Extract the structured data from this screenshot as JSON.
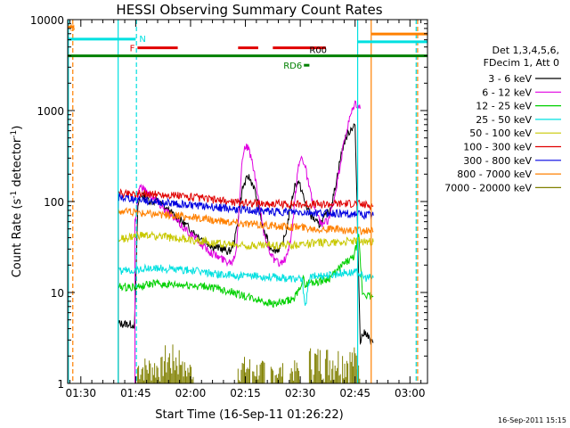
{
  "chart_data": {
    "type": "line",
    "title": "HESSI Observing Summary Count Rates",
    "xlabel": "Start Time (16-Sep-11 01:26:22)",
    "ylabel": "Count Rate (s",
    "ylabel_sup": "-1",
    "ylabel_mid": " detector",
    "ylabel_sup2": "-1",
    "ylabel_end": ")",
    "yscale": "log",
    "ylim": [
      1,
      10000
    ],
    "xlim_min": [
      86.4,
      184.8
    ],
    "x_ticks": [
      {
        "min": 90,
        "label": "01:30"
      },
      {
        "min": 105,
        "label": "01:45"
      },
      {
        "min": 120,
        "label": "02:00"
      },
      {
        "min": 135,
        "label": "02:15"
      },
      {
        "min": 150,
        "label": "02:30"
      },
      {
        "min": 165,
        "label": "02:45"
      },
      {
        "min": 180,
        "label": "03:00"
      }
    ],
    "y_ticks": [
      {
        "value": 1,
        "label": "1"
      },
      {
        "value": 10,
        "label": "10"
      },
      {
        "value": 100,
        "label": "100"
      },
      {
        "value": 1000,
        "label": "1000"
      },
      {
        "value": 10000,
        "label": "10000"
      }
    ],
    "legend": {
      "position": "right",
      "header": [
        "Det 1,3,4,5,6,",
        "FDecim 1, Att 0"
      ],
      "entries": [
        {
          "label": "3 - 6 keV",
          "color": "#000000"
        },
        {
          "label": "6 - 12 keV",
          "color": "#e000e0"
        },
        {
          "label": "12 - 25 keV",
          "color": "#00d000"
        },
        {
          "label": "25 - 50 keV",
          "color": "#00e0e0"
        },
        {
          "label": "50 - 100 keV",
          "color": "#c8c800"
        },
        {
          "label": "100 - 300 keV",
          "color": "#e00000"
        },
        {
          "label": "300 - 800 keV",
          "color": "#0000e0"
        },
        {
          "label": "800 - 7000 keV",
          "color": "#ff8000"
        },
        {
          "label": "7000 - 20000 keV",
          "color": "#808000"
        }
      ]
    },
    "series": [
      {
        "name": "3 - 6 keV",
        "color": "#000000",
        "x": [
          100.2,
          101.3,
          101.6,
          103,
          104.7,
          105.6,
          106.5,
          107.8,
          109.4,
          111.2,
          113.5,
          116,
          118.6,
          121,
          123.6,
          126,
          128.8,
          130.4,
          131.2,
          132.2,
          133.2,
          134.2,
          135.8,
          137.2,
          138.6,
          140,
          141.7,
          143.5,
          145,
          146.3,
          147.4,
          148.5,
          149.4,
          150.5,
          151.3,
          152.2,
          153,
          154,
          155,
          156,
          157,
          158,
          159,
          160,
          161,
          162,
          163,
          164,
          165,
          166.4,
          167.2,
          168.2,
          169.3,
          170
        ],
        "y": [
          4.6,
          4.5,
          4.5,
          4.5,
          4.4,
          90,
          120,
          110,
          100,
          100,
          82,
          68,
          56,
          45,
          38,
          32,
          30,
          28,
          30,
          40,
          75,
          140,
          190,
          150,
          90,
          48,
          32,
          29,
          32,
          50,
          90,
          150,
          165,
          130,
          95,
          80,
          70,
          62,
          55,
          60,
          70,
          80,
          110,
          180,
          300,
          450,
          550,
          640,
          700,
          3.0,
          3.5,
          3.6,
          2.8,
          2.8
        ]
      },
      {
        "name": "6 - 12 keV",
        "color": "#e000e0",
        "x": [
          104.8,
          106,
          108,
          110,
          112,
          114,
          116,
          118,
          120,
          122,
          124,
          126,
          128,
          130,
          131.5,
          132.5,
          133.2,
          134,
          134.8,
          135.8,
          137,
          138.5,
          140,
          141.5,
          143,
          144.5,
          146,
          147.5,
          148.5,
          149.5,
          150.5,
          151.5,
          152.5,
          153.5,
          154.5,
          156,
          157.5,
          159,
          160.5,
          162,
          163.5,
          165,
          166.4
        ],
        "y": [
          60,
          150,
          130,
          110,
          90,
          75,
          62,
          52,
          44,
          37,
          31,
          27,
          24,
          22,
          22,
          30,
          80,
          250,
          420,
          380,
          260,
          110,
          45,
          30,
          22,
          21,
          23,
          38,
          100,
          250,
          320,
          230,
          140,
          95,
          70,
          55,
          62,
          90,
          200,
          450,
          800,
          1200,
          1050
        ]
      },
      {
        "name": "12 - 25 keV",
        "color": "#00d000",
        "x": [
          100.2,
          103,
          106,
          110,
          115,
          120,
          125,
          130,
          135,
          140,
          143,
          146,
          148,
          149.5,
          150,
          150.8,
          151.5,
          152.5,
          154,
          156,
          158,
          160,
          161.5,
          163,
          164.5,
          166,
          167,
          169,
          170
        ],
        "y": [
          11.5,
          11.5,
          11.5,
          12.5,
          12,
          12,
          11.5,
          10.5,
          9,
          8,
          7.5,
          7.8,
          8.5,
          10,
          12,
          14,
          12,
          13,
          13,
          13.5,
          14.5,
          17,
          20,
          22,
          24,
          40,
          10,
          9,
          9
        ]
      },
      {
        "name": "25 - 50 keV",
        "color": "#00e0e0",
        "x": [
          100.2,
          103,
          106,
          110,
          115,
          120,
          125,
          130,
          135,
          140,
          145,
          149.5,
          150.5,
          151.5,
          152.5,
          154,
          156,
          158,
          160,
          162,
          164,
          166,
          167,
          168,
          169,
          170
        ],
        "y": [
          17,
          17.5,
          18,
          18.5,
          18,
          17.5,
          16.5,
          15.5,
          15,
          15,
          14.5,
          14,
          13.5,
          7,
          14.5,
          15,
          15.5,
          15.5,
          16,
          16.5,
          16.5,
          16.5,
          15,
          14.5,
          14.5,
          14.5
        ]
      },
      {
        "name": "50 - 100 keV",
        "color": "#c8c800",
        "x": [
          100.2,
          103,
          106,
          110,
          115,
          120,
          125,
          130,
          135,
          140,
          145,
          150,
          155,
          160,
          165,
          167,
          170
        ],
        "y": [
          38,
          40,
          42,
          42,
          40,
          38,
          36,
          34,
          33,
          33,
          33,
          34,
          35,
          36,
          37,
          36,
          36
        ]
      },
      {
        "name": "100 - 300 keV",
        "color": "#e00000",
        "x": [
          100.2,
          103,
          106,
          110,
          115,
          120,
          125,
          130,
          135,
          140,
          145,
          150,
          155,
          160,
          165,
          167,
          170
        ],
        "y": [
          122,
          123,
          122,
          120,
          117,
          112,
          106,
          100,
          97,
          95,
          94,
          93,
          93,
          94,
          95,
          92,
          90
        ]
      },
      {
        "name": "300 - 800 keV",
        "color": "#0000e0",
        "x": [
          100.2,
          103,
          106,
          110,
          115,
          120,
          125,
          130,
          135,
          140,
          145,
          150,
          155,
          160,
          165,
          167,
          170
        ],
        "y": [
          110,
          108,
          105,
          100,
          96,
          92,
          88,
          84,
          80,
          78,
          77,
          76,
          75,
          74,
          73,
          71,
          70
        ]
      },
      {
        "name": "800 - 7000 keV",
        "color": "#ff8000",
        "x": [
          100.2,
          103,
          106,
          110,
          115,
          120,
          125,
          130,
          135,
          140,
          145,
          150,
          155,
          160,
          165,
          167,
          170
        ],
        "y": [
          78,
          77,
          75,
          73,
          70,
          67,
          63,
          60,
          57,
          55,
          53,
          52,
          50,
          49,
          48,
          47,
          47
        ]
      },
      {
        "name": "7000 - 20000 keV",
        "color": "#808000",
        "style": "bars",
        "ranges": [
          [
            105.5,
            112.5
          ],
          [
            112.5,
            117.5
          ],
          [
            117.5,
            120.8
          ],
          [
            133,
            136.5
          ],
          [
            137,
            140.5
          ],
          [
            142,
            145.5
          ],
          [
            147,
            150
          ],
          [
            152.5,
            166.3
          ]
        ],
        "peaks": [
          2.0,
          2.7,
          1.8,
          2.0,
          1.8,
          1.7,
          1.8,
          2.6
        ]
      }
    ],
    "flags": [
      {
        "label": "S",
        "color": "#ff8000",
        "x": [
          86.4,
          88.2
        ],
        "y": 8300
      },
      {
        "label": "N",
        "color": "#00e0e0",
        "x": [
          86.4,
          105
        ],
        "y": 6100
      },
      {
        "label": "F",
        "color": "#e00000",
        "x": [
          105.5,
          116.5
        ],
        "y": 4900
      },
      {
        "label": "",
        "color": "#e00000",
        "x": [
          133,
          138.5
        ],
        "y": 4900
      },
      {
        "label": "",
        "color": "#e00000",
        "x": [
          142.5,
          157
        ],
        "y": 4900
      },
      {
        "label": "",
        "color": "#008000",
        "x": [
          86.4,
          184.8
        ],
        "y": 4000
      },
      {
        "label": "RD6",
        "color": "#008000",
        "x": [
          151,
          152.5
        ],
        "y": 3150
      },
      {
        "label": "R00",
        "color": "#000000",
        "x": [],
        "y": 4200
      },
      {
        "label": "",
        "color": "#00e0e0",
        "x": [
          165.8,
          184.8
        ],
        "y": 5700
      },
      {
        "label": "",
        "color": "#ff8000",
        "x": [
          169.5,
          184.8
        ],
        "y": 6950
      }
    ],
    "markers": [
      {
        "type": "solid",
        "color": "#00e0e0",
        "x": 86.6
      },
      {
        "type": "dashed",
        "color": "#ff8000",
        "x": 87.8
      },
      {
        "type": "solid",
        "color": "#00e0e0",
        "x": 100.2
      },
      {
        "type": "dashed",
        "color": "#00e0e0",
        "x": 105.2
      },
      {
        "type": "solid",
        "color": "#00e0e0",
        "x": 165.7
      },
      {
        "type": "solid",
        "color": "#ff8000",
        "x": 169.4
      },
      {
        "type": "dashed",
        "color": "#00e0e0",
        "x": 181.7
      },
      {
        "type": "dashed",
        "color": "#ff8000",
        "x": 182.1
      }
    ],
    "timestamp": "16-Sep-2011 15:15"
  }
}
